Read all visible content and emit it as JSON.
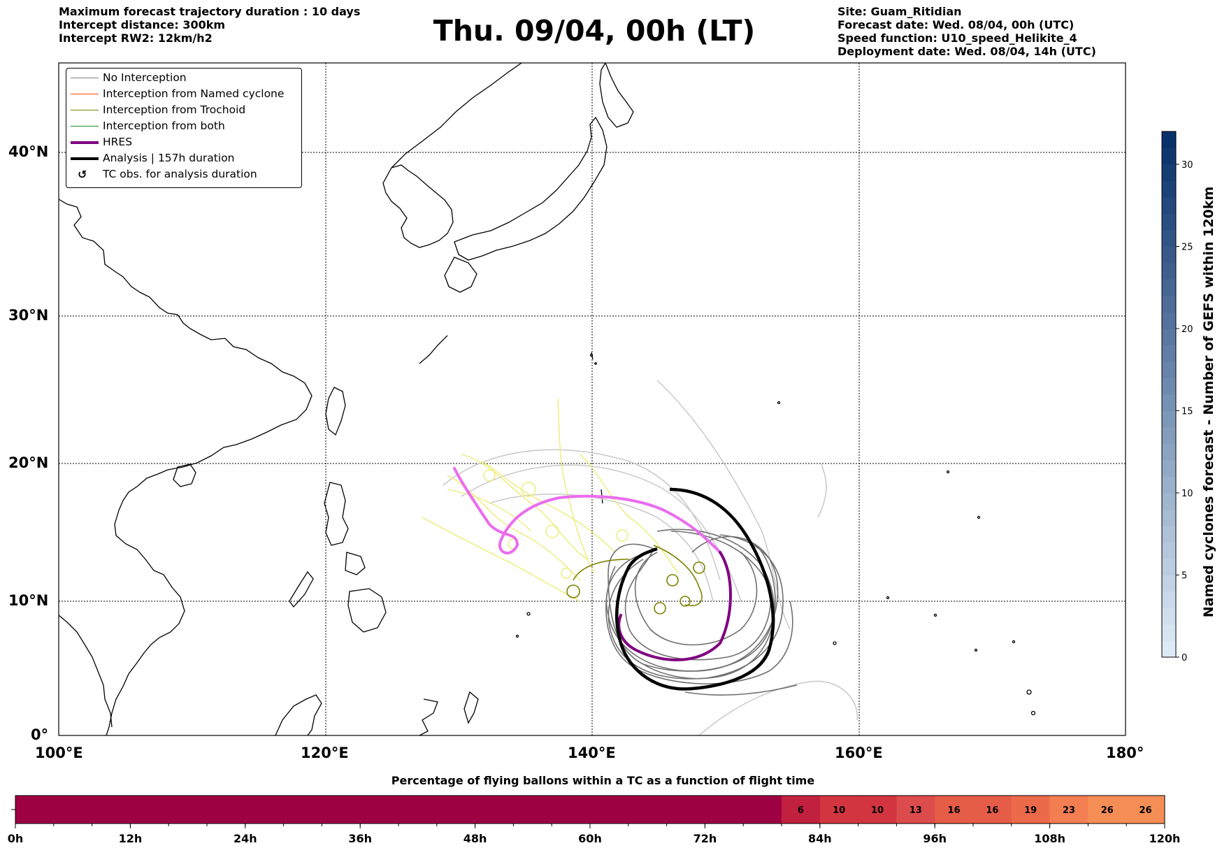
{
  "header": {
    "left": [
      "Maximum forecast trajectory duration : 10 days",
      "Intercept distance: 300km",
      "Intercept RW2: 12km/h2"
    ],
    "title": "Thu. 09/04, 00h (LT)",
    "right": [
      "Site: Guam_Ritidian",
      "Forecast date: Wed. 08/04, 00h (UTC)",
      "Speed function: U10_speed_Helikite_4",
      "Deployment date: Wed. 08/04, 14h (UTC)"
    ]
  },
  "map": {
    "lon_range": [
      100,
      180
    ],
    "lat_range": [
      0,
      45
    ],
    "lon_ticks": [
      "100°E",
      "120°E",
      "140°E",
      "160°E",
      "180°"
    ],
    "lat_ticks": [
      "0°",
      "10°N",
      "20°N",
      "30°N",
      "40°N"
    ],
    "grid": "dotted"
  },
  "legend": {
    "items": [
      {
        "label": "No Interception",
        "color": "#808080"
      },
      {
        "label": "Interception from Named cyclone",
        "color": "#ff4500"
      },
      {
        "label": "Interception from Trochoid",
        "color": "#808000"
      },
      {
        "label": "Interception from both",
        "color": "#228b22"
      },
      {
        "label": "HRES",
        "color": "#800080"
      },
      {
        "label": "Analysis | 157h duration",
        "color": "#000000"
      },
      {
        "label": "TC obs. for analysis duration",
        "color": "#000000"
      }
    ],
    "obs_marker": "↺"
  },
  "colorbar": {
    "label": "Named cyclones forecast - Number of GEFS within 120km",
    "range": [
      0,
      32
    ],
    "ticks": [
      "0",
      "5",
      "10",
      "15",
      "20",
      "25",
      "30"
    ]
  },
  "bottom_bar": {
    "title": "Percentage of flying ballons within a TC as a function of flight time",
    "ticks": [
      "0h",
      "12h",
      "24h",
      "36h",
      "48h",
      "60h",
      "72h",
      "84h",
      "96h",
      "108h",
      "120h"
    ],
    "cell_values": [
      "6",
      "10",
      "10",
      "13",
      "16",
      "16",
      "19",
      "23",
      "26",
      "26"
    ],
    "base_color": "#9e0142",
    "cell_colors": [
      "#c2203f",
      "#d2353f",
      "#d2353f",
      "#dc4c4c",
      "#e55c47",
      "#e55c47",
      "#ec6a4a",
      "#f27e52",
      "#f58e55",
      "#f58e55"
    ]
  }
}
